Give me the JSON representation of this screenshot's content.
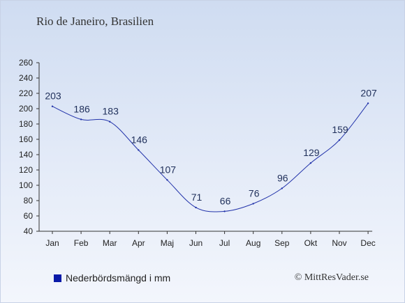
{
  "title": "Rio de Janeiro, Brasilien",
  "legend_label": "Nederbördsmängd i mm",
  "credit": "© MittResVader.se",
  "colors": {
    "line": "#2233aa",
    "legend_swatch": "#0a1aa8",
    "axis": "#333333"
  },
  "chart_data": {
    "type": "line",
    "title": "Rio de Janeiro, Brasilien",
    "categories": [
      "Jan",
      "Feb",
      "Mar",
      "Apr",
      "Maj",
      "Jun",
      "Jul",
      "Aug",
      "Sep",
      "Okt",
      "Nov",
      "Dec"
    ],
    "series": [
      {
        "name": "Nederbördsmängd i mm",
        "values": [
          203,
          186,
          183,
          146,
          107,
          71,
          66,
          76,
          96,
          129,
          159,
          207
        ]
      }
    ],
    "yticks": [
      40,
      60,
      80,
      100,
      120,
      140,
      160,
      180,
      200,
      220,
      240,
      260
    ],
    "ylim": [
      40,
      260
    ],
    "grid": false,
    "legend_position": "bottom-left"
  }
}
